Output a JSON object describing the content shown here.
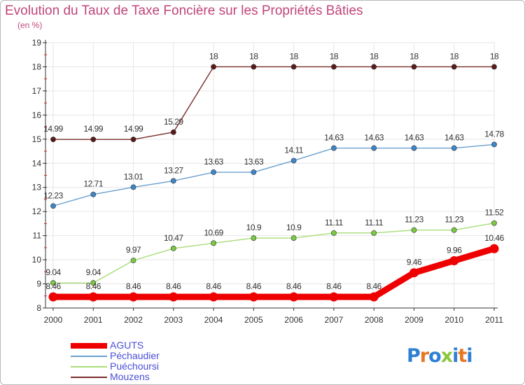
{
  "chart_data": {
    "type": "line",
    "title": "Evolution du Taux de Taxe Foncière sur les Propriétés Bâties",
    "unit_label": "(en %)",
    "xlabel": "",
    "ylabel": "",
    "ylim": [
      8,
      19
    ],
    "yticks": [
      "8",
      "9",
      "10",
      "11",
      "12",
      "13",
      "14",
      "15",
      "16",
      "17",
      "18",
      "19"
    ],
    "categories": [
      "2000",
      "2001",
      "2002",
      "2003",
      "2004",
      "2005",
      "2006",
      "2007",
      "2008",
      "2009",
      "2010",
      "2011"
    ],
    "series": [
      {
        "name": "AGUTS",
        "color": "#ee0000",
        "marker_color": "#ee0000",
        "values": [
          8.46,
          8.46,
          8.46,
          8.46,
          8.46,
          8.46,
          8.46,
          8.46,
          8.46,
          9.46,
          9.96,
          10.46
        ],
        "labels": [
          "8.46",
          "8.46",
          "8.46",
          "8.46",
          "8.46",
          "8.46",
          "8.46",
          "8.46",
          "8.46",
          "9.46",
          "9.96",
          "10.46"
        ]
      },
      {
        "name": "Péchaudier",
        "color": "#6aa0cf",
        "marker_color": "#3f86c8",
        "values": [
          12.23,
          12.71,
          13.01,
          13.27,
          13.63,
          13.63,
          14.11,
          14.63,
          14.63,
          14.63,
          14.63,
          14.78
        ],
        "labels": [
          "12.23",
          "12.71",
          "13.01",
          "13.27",
          "13.63",
          "13.63",
          "14.11",
          "14.63",
          "14.63",
          "14.63",
          "14.63",
          "14.78"
        ]
      },
      {
        "name": "Puéchoursi",
        "color": "#a8dc78",
        "marker_color": "#7ac943",
        "values": [
          9.04,
          9.04,
          9.97,
          10.47,
          10.69,
          10.9,
          10.9,
          11.11,
          11.11,
          11.23,
          11.23,
          11.52
        ],
        "labels": [
          "9.04",
          "9.04",
          "9.97",
          "10.47",
          "10.69",
          "10.9",
          "10.9",
          "11.11",
          "11.11",
          "11.23",
          "11.23",
          "11.52"
        ]
      },
      {
        "name": "Mouzens",
        "color": "#7a2c2c",
        "marker_color": "#5a1a1a",
        "values": [
          14.99,
          14.99,
          14.99,
          15.29,
          18,
          18,
          18,
          18,
          18,
          18,
          18,
          18
        ],
        "labels": [
          "14.99",
          "14.99",
          "14.99",
          "15.29",
          "18",
          "18",
          "18",
          "18",
          "18",
          "18",
          "18",
          "18"
        ]
      }
    ],
    "legend_position": "bottom-left"
  },
  "logo": {
    "letters": [
      "P",
      "r",
      "o",
      "x",
      "i",
      "t",
      "i"
    ],
    "text": "Proxiti"
  }
}
